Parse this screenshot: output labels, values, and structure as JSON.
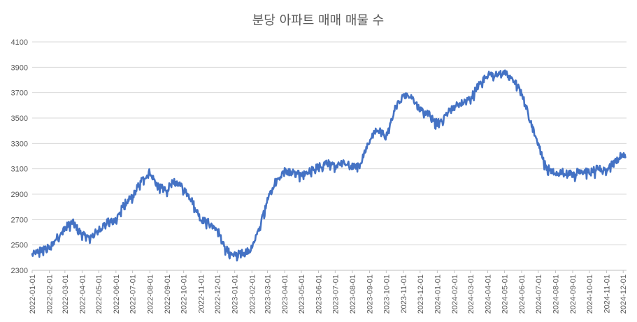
{
  "chart_data": {
    "type": "line",
    "title": "분당 아파트 매매 매물 수",
    "xlabel": "",
    "ylabel": "",
    "ylim": [
      2300,
      4100
    ],
    "yticks": [
      2300,
      2500,
      2700,
      2900,
      3100,
      3300,
      3500,
      3700,
      3900,
      4100
    ],
    "xticks": [
      "2022-01-01",
      "2022-02-01",
      "2022-03-01",
      "2022-04-01",
      "2022-05-01",
      "2022-06-01",
      "2022-07-01",
      "2022-08-01",
      "2022-09-01",
      "2022-10-01",
      "2022-11-01",
      "2022-12-01",
      "2023-01-01",
      "2023-02-01",
      "2023-03-01",
      "2023-04-01",
      "2023-05-01",
      "2023-06-01",
      "2023-07-01",
      "2023-08-01",
      "2023-09-01",
      "2023-10-01",
      "2023-11-01",
      "2023-12-01",
      "2024-01-01",
      "2024-02-01",
      "2024-03-01",
      "2024-04-01",
      "2024-05-01",
      "2024-06-01",
      "2024-07-01",
      "2024-08-01",
      "2024-09-01",
      "2024-10-01",
      "2024-11-01",
      "2024-12-01"
    ],
    "grid": true,
    "legend": "none",
    "colors": {
      "series": "#4472c4"
    },
    "series": [
      {
        "x": [
          "2022-01-01",
          "2022-01-15",
          "2022-02-01",
          "2022-02-15",
          "2022-03-01",
          "2022-03-15",
          "2022-04-01",
          "2022-04-15",
          "2022-05-01",
          "2022-05-15",
          "2022-06-01",
          "2022-06-15",
          "2022-07-01",
          "2022-07-15",
          "2022-08-01",
          "2022-08-15",
          "2022-09-01",
          "2022-09-15",
          "2022-10-01",
          "2022-10-15",
          "2022-11-01",
          "2022-11-15",
          "2022-12-01",
          "2022-12-15",
          "2023-01-01",
          "2023-01-15",
          "2023-02-01",
          "2023-02-15",
          "2023-03-01",
          "2023-03-15",
          "2023-04-01",
          "2023-04-15",
          "2023-05-01",
          "2023-05-15",
          "2023-06-01",
          "2023-06-15",
          "2023-07-01",
          "2023-07-15",
          "2023-08-01",
          "2023-08-15",
          "2023-09-01",
          "2023-09-15",
          "2023-10-01",
          "2023-10-15",
          "2023-11-01",
          "2023-11-15",
          "2023-12-01",
          "2023-12-15",
          "2024-01-01",
          "2024-01-15",
          "2024-02-01",
          "2024-02-15",
          "2024-03-01",
          "2024-03-15",
          "2024-04-01",
          "2024-04-15",
          "2024-05-01",
          "2024-05-15",
          "2024-06-01",
          "2024-06-15",
          "2024-07-01",
          "2024-07-15",
          "2024-08-01",
          "2024-08-15",
          "2024-09-01",
          "2024-09-15",
          "2024-10-01",
          "2024-10-15",
          "2024-11-01",
          "2024-11-15",
          "2024-12-01",
          "2024-12-05"
        ],
        "values": [
          2420,
          2460,
          2480,
          2560,
          2640,
          2680,
          2580,
          2560,
          2620,
          2680,
          2700,
          2820,
          2880,
          3000,
          3080,
          2960,
          2940,
          3010,
          2940,
          2860,
          2700,
          2680,
          2620,
          2480,
          2420,
          2440,
          2470,
          2650,
          2850,
          3000,
          3080,
          3070,
          3060,
          3080,
          3120,
          3150,
          3120,
          3160,
          3120,
          3130,
          3350,
          3420,
          3350,
          3560,
          3680,
          3680,
          3560,
          3540,
          3460,
          3520,
          3600,
          3620,
          3660,
          3760,
          3840,
          3840,
          3860,
          3820,
          3700,
          3500,
          3300,
          3120,
          3060,
          3080,
          3060,
          3090,
          3080,
          3100,
          3100,
          3150,
          3220,
          3190
        ]
      }
    ]
  }
}
